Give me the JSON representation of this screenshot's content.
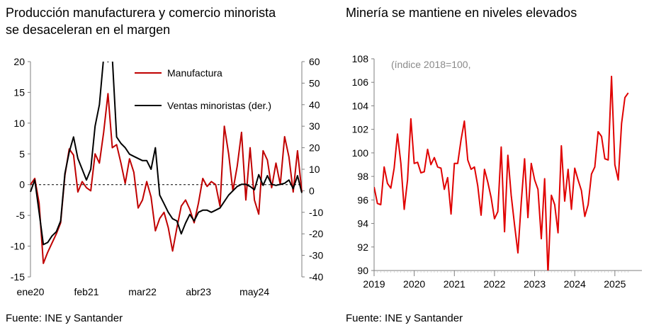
{
  "left": {
    "title_line1": "Producción manufacturera y comercio minorista",
    "title_line2": "se desaceleran en el margen",
    "source": "Fuente: INE y Santander"
  },
  "right": {
    "title": "Minería se mantiene en niveles elevados",
    "source": "Fuente: INE y Santander"
  },
  "colors": {
    "manufactura": "#c00000",
    "ventas": "#000000",
    "mineria": "#e00000",
    "axis": "#7f7f7f"
  },
  "chart_data": [
    {
      "type": "line",
      "title": "Producción manufacturera y comercio minorista se desaceleran en el margen",
      "x_tick_labels": [
        "ene20",
        "feb21",
        "mar22",
        "abr23",
        "may24"
      ],
      "x_tick_months": [
        0,
        13,
        26,
        39,
        52
      ],
      "y_left": {
        "ticks": [
          "20",
          "15",
          "10",
          "5",
          "0",
          "-5",
          "-10",
          "-15"
        ],
        "ylim": [
          -15,
          20
        ]
      },
      "y_right": {
        "ticks": [
          "60",
          "50",
          "40",
          "30",
          "20",
          "10",
          "0",
          "-10",
          "-20",
          "-30",
          "-40"
        ],
        "ylim": [
          -40,
          60
        ]
      },
      "zero_line": "dashed",
      "legend_position": "top-right",
      "series": [
        {
          "name": "Manufactura",
          "axis": "left",
          "values": [
            0,
            1,
            -3,
            -12.8,
            -11,
            -9.5,
            -8,
            -6.2,
            1.5,
            5.8,
            4.8,
            -1.2,
            0.5,
            -0.5,
            -1,
            5,
            3.5,
            8.5,
            14.8,
            6,
            6.5,
            3.5,
            0.2,
            4.2,
            2,
            -3.8,
            -2.5,
            0.5,
            -2,
            -7.5,
            -5.5,
            -4.5,
            -7,
            -10.8,
            -7,
            -3.5,
            -2.5,
            -4,
            -6.2,
            -3,
            1,
            -0.3,
            0.5,
            0,
            -3.5,
            9.5,
            5,
            -1,
            3,
            8.5,
            -2.5,
            6,
            -2.5,
            -4.8,
            5.5,
            4,
            -0.5,
            3.5,
            0,
            7.8,
            4.5,
            -1.2,
            5.5,
            -1.2
          ]
        },
        {
          "name": "Ventas minoristas (der.)",
          "axis": "right",
          "values": [
            -0.5,
            5,
            -10,
            -25,
            -24,
            -21,
            -19,
            -14,
            8,
            18,
            25,
            15,
            10,
            5,
            10,
            30,
            40,
            62,
            60,
            62,
            25,
            22,
            20,
            17,
            16,
            15,
            14,
            14,
            10,
            20,
            -2,
            -6,
            -10,
            -13,
            -14,
            -20,
            -15,
            -11,
            -14,
            -10,
            -9,
            -9,
            -10,
            -9,
            -8,
            -5,
            -2,
            0,
            2,
            3,
            3,
            2,
            0.5,
            7.5,
            2.5,
            7,
            3,
            2.5,
            3,
            3.5,
            5,
            1,
            7,
            -1
          ]
        }
      ]
    },
    {
      "type": "line",
      "title": "Minería se mantiene en niveles elevados",
      "note": "(índice 2018=100,",
      "x_tick_labels": [
        "2019",
        "2020",
        "2021",
        "2022",
        "2023",
        "2024",
        "2025"
      ],
      "x_tick_years": [
        2019,
        2020,
        2021,
        2022,
        2023,
        2024,
        2025
      ],
      "y_ticks": [
        "108",
        "106",
        "104",
        "102",
        "100",
        "98",
        "96",
        "94",
        "92",
        "90"
      ],
      "ylim": [
        90,
        108
      ],
      "x_range": [
        "2019-01",
        "2025-05"
      ],
      "series": [
        {
          "name": "",
          "values": [
            97.1,
            95.7,
            95.6,
            98.8,
            97.4,
            97.0,
            98.7,
            101.6,
            99.1,
            95.2,
            97.7,
            102.9,
            99.1,
            99.2,
            98.3,
            98.4,
            100.3,
            99.0,
            99.6,
            98.8,
            98.7,
            96.9,
            97.9,
            94.8,
            99.1,
            99.1,
            101.1,
            102.7,
            99.4,
            98.6,
            98.8,
            97.2,
            94.7,
            98.6,
            97.5,
            96.2,
            94.4,
            95.0,
            100.5,
            93.3,
            99.8,
            96.4,
            93.9,
            91.5,
            95.8,
            99.5,
            94.5,
            99.1,
            97.7,
            96.9,
            92.7,
            97.8,
            89.7,
            96.4,
            95.6,
            93.2,
            100.6,
            95.9,
            98.6,
            95.2,
            98.7,
            97.7,
            96.8,
            94.6,
            95.6,
            98.2,
            98.8,
            101.8,
            101.4,
            99.5,
            99.4,
            106.5,
            99.0,
            97.7,
            102.5,
            104.7,
            105.1
          ]
        }
      ]
    }
  ]
}
